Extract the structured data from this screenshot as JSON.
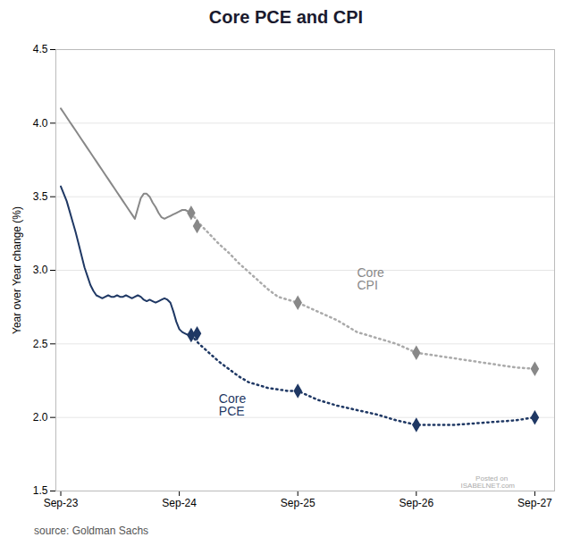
{
  "chart_data": {
    "type": "line",
    "title": "Core PCE and CPI",
    "y_label": "Year over Year change (%)",
    "source": "source: Goldman Sachs",
    "xlim": [
      -0.5,
      50
    ],
    "xticks": [
      {
        "value": 0,
        "label": "Sep-23"
      },
      {
        "value": 12,
        "label": "Sep-24"
      },
      {
        "value": 24,
        "label": "Sep-25"
      },
      {
        "value": 36,
        "label": "Sep-26"
      },
      {
        "value": 48,
        "label": "Sep-27"
      }
    ],
    "ylim": [
      1.5,
      4.5
    ],
    "yticks": [
      1.5,
      {
        "value": 2.0,
        "label": "2.0"
      },
      2.5,
      {
        "value": 3.0,
        "label": "3.0"
      },
      3.5,
      {
        "value": 4.0,
        "label": "4.0"
      },
      4.5
    ],
    "grid": "y",
    "series": [
      {
        "type": "line",
        "line_style": "solid",
        "color": "#888888",
        "x": [
          0,
          0.3,
          0.6,
          0.9,
          1.2,
          1.5,
          1.8,
          2.1,
          2.4,
          2.7,
          3.0,
          3.3,
          3.6,
          3.9,
          4.2,
          4.5,
          4.8,
          5.1,
          5.4,
          5.7,
          6.0,
          6.3,
          6.6,
          6.9,
          7.2,
          7.5,
          7.8,
          8.1,
          8.4,
          8.7,
          9.0,
          9.3,
          9.6,
          9.9,
          10.2,
          10.5,
          10.8,
          11.1,
          11.4,
          11.7,
          12.0,
          12.3,
          12.6,
          12.9,
          13.2
        ],
        "values": [
          4.1,
          4.07,
          4.04,
          4.01,
          3.98,
          3.95,
          3.92,
          3.89,
          3.86,
          3.83,
          3.8,
          3.77,
          3.74,
          3.71,
          3.68,
          3.65,
          3.62,
          3.59,
          3.56,
          3.53,
          3.5,
          3.47,
          3.44,
          3.41,
          3.38,
          3.35,
          3.42,
          3.49,
          3.52,
          3.52,
          3.5,
          3.46,
          3.43,
          3.39,
          3.36,
          3.35,
          3.36,
          3.37,
          3.38,
          3.39,
          3.4,
          3.41,
          3.41,
          3.4,
          3.39
        ]
      },
      {
        "type": "line",
        "line_style": "dotted",
        "color": "#aaaaaa",
        "x": [
          13.2,
          14,
          15,
          16,
          17,
          18,
          19,
          20,
          21,
          22,
          23,
          24,
          26,
          28,
          30,
          32,
          34,
          36,
          38,
          40,
          42,
          44,
          46,
          48
        ],
        "values": [
          3.39,
          3.32,
          3.25,
          3.18,
          3.12,
          3.05,
          2.99,
          2.93,
          2.87,
          2.82,
          2.8,
          2.78,
          2.72,
          2.66,
          2.58,
          2.54,
          2.5,
          2.44,
          2.42,
          2.4,
          2.38,
          2.36,
          2.34,
          2.33
        ]
      },
      {
        "type": "scatter",
        "marker": "diamond",
        "color": "#888888",
        "x": [
          13.2,
          13.8,
          24.0,
          36.0,
          48.0
        ],
        "values": [
          3.39,
          3.3,
          2.78,
          2.44,
          2.33
        ]
      },
      {
        "type": "line",
        "line_style": "solid",
        "color": "#1f3864",
        "x": [
          0,
          0.3,
          0.6,
          0.9,
          1.2,
          1.5,
          1.8,
          2.1,
          2.4,
          2.7,
          3.0,
          3.3,
          3.6,
          3.9,
          4.2,
          4.5,
          4.8,
          5.1,
          5.4,
          5.7,
          6.0,
          6.3,
          6.6,
          6.9,
          7.2,
          7.5,
          7.8,
          8.1,
          8.4,
          8.7,
          9.0,
          9.3,
          9.6,
          9.9,
          10.2,
          10.5,
          10.8,
          11.1,
          11.4,
          11.7,
          12.0,
          12.3,
          12.6,
          12.9,
          13.2
        ],
        "values": [
          3.57,
          3.52,
          3.47,
          3.4,
          3.33,
          3.26,
          3.18,
          3.1,
          3.02,
          2.96,
          2.9,
          2.86,
          2.83,
          2.82,
          2.81,
          2.82,
          2.83,
          2.82,
          2.82,
          2.83,
          2.82,
          2.82,
          2.83,
          2.82,
          2.81,
          2.82,
          2.83,
          2.82,
          2.8,
          2.79,
          2.8,
          2.79,
          2.78,
          2.79,
          2.8,
          2.81,
          2.8,
          2.78,
          2.72,
          2.65,
          2.6,
          2.58,
          2.57,
          2.56,
          2.56
        ]
      },
      {
        "type": "line",
        "line_style": "dotted",
        "color": "#1f3864",
        "x": [
          13.2,
          14,
          15,
          16,
          17,
          18,
          19,
          20,
          21,
          22,
          23,
          24,
          26,
          28,
          30,
          32,
          34,
          36,
          38,
          40,
          42,
          44,
          46,
          48
        ],
        "values": [
          2.56,
          2.5,
          2.44,
          2.38,
          2.33,
          2.28,
          2.24,
          2.22,
          2.2,
          2.19,
          2.18,
          2.18,
          2.12,
          2.08,
          2.05,
          2.02,
          1.98,
          1.95,
          1.95,
          1.95,
          1.96,
          1.97,
          1.98,
          2.0
        ]
      },
      {
        "type": "scatter",
        "marker": "diamond",
        "color": "#1f3864",
        "x": [
          13.2,
          13.8,
          24.0,
          36.0,
          48.0
        ],
        "values": [
          2.56,
          2.57,
          2.18,
          1.95,
          2.0
        ]
      }
    ],
    "annotations": [
      {
        "text": "Core\nCPI",
        "x": 30,
        "y": 2.94,
        "color": "#888888"
      },
      {
        "text": "Core\nPCE",
        "x": 16,
        "y": 2.08,
        "color": "#1f3864"
      },
      {
        "text": "Posted on",
        "x": 42,
        "y": 1.57,
        "color": "#aaaaaa"
      },
      {
        "text": "ISABELNET.com",
        "x": 40.5,
        "y": 1.52,
        "color": "#aaaaaa"
      }
    ]
  }
}
